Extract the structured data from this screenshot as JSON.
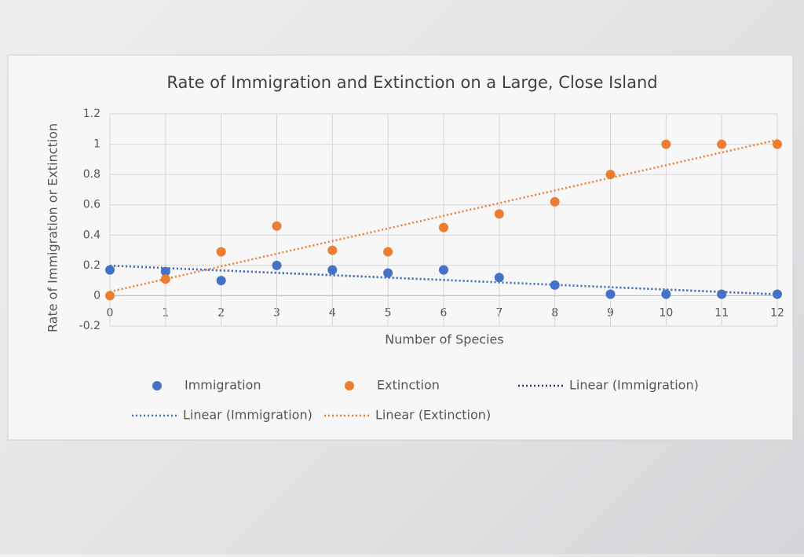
{
  "chart_data": {
    "type": "scatter",
    "title": "Rate of Immigration and Extinction on a Large, Close Island",
    "x_label": "Number of Species",
    "y_label": "Rate of Immigration or Extinction",
    "x": [
      0,
      1,
      2,
      3,
      4,
      5,
      6,
      7,
      8,
      9,
      10,
      11,
      12
    ],
    "series": [
      {
        "name": "Immigration",
        "color": "#4472c4",
        "values": [
          0.17,
          0.16,
          0.1,
          0.2,
          0.17,
          0.15,
          0.17,
          0.12,
          0.07,
          0.01,
          0.01,
          0.01,
          0.01
        ]
      },
      {
        "name": "Extinction",
        "color": "#ed7d31",
        "values": [
          0,
          0.11,
          0.29,
          0.46,
          0.3,
          0.29,
          0.45,
          0.54,
          0.62,
          0.8,
          1.0,
          1.0,
          1.0
        ]
      }
    ],
    "trendlines": [
      {
        "name": "Linear (Immigration)",
        "of": "Immigration",
        "color": "#2a3a78"
      },
      {
        "name": "Linear (Immigration)",
        "of": "Immigration",
        "color": "#4472c4"
      },
      {
        "name": "Linear (Extinction)",
        "of": "Extinction",
        "color": "#ed7d31"
      }
    ],
    "xlim": [
      0,
      12
    ],
    "xticks": [
      0,
      1,
      2,
      3,
      4,
      5,
      6,
      7,
      8,
      9,
      10,
      11,
      12
    ],
    "ylim": [
      -0.2,
      1.2
    ],
    "yticks": [
      -0.2,
      0,
      0.2,
      0.4,
      0.6,
      0.8,
      1,
      1.2
    ],
    "grid": true
  }
}
